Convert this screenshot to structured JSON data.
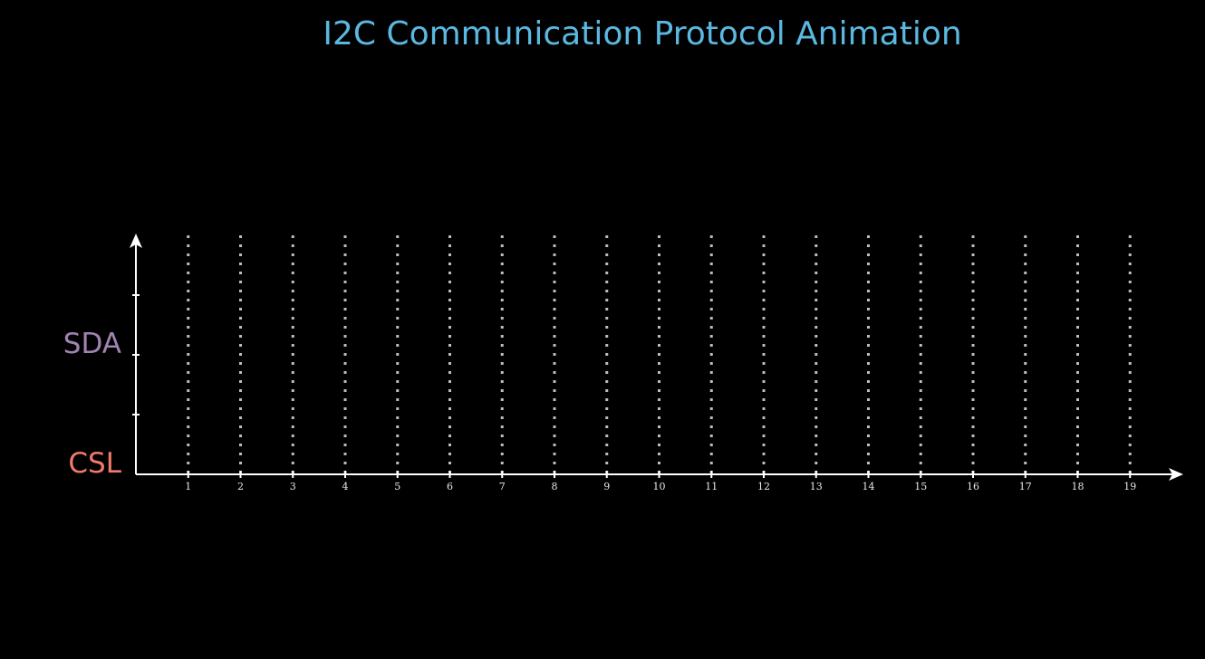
{
  "title": "I2C Communication Protocol Animation",
  "colors": {
    "background": "#000000",
    "title": "#5bb8e0",
    "sda": "#a183b3",
    "csl": "#f27a6c",
    "axis": "#ffffff",
    "gridline": "#bdbdbd",
    "tick_label": "#e8e8e8"
  },
  "labels": {
    "sda": "SDA",
    "csl": "CSL"
  },
  "time_axis": {
    "ticks": [
      "1",
      "2",
      "3",
      "4",
      "5",
      "6",
      "7",
      "8",
      "9",
      "10",
      "11",
      "12",
      "13",
      "14",
      "15",
      "16",
      "17",
      "18",
      "19"
    ],
    "gridlines": "dotted"
  }
}
